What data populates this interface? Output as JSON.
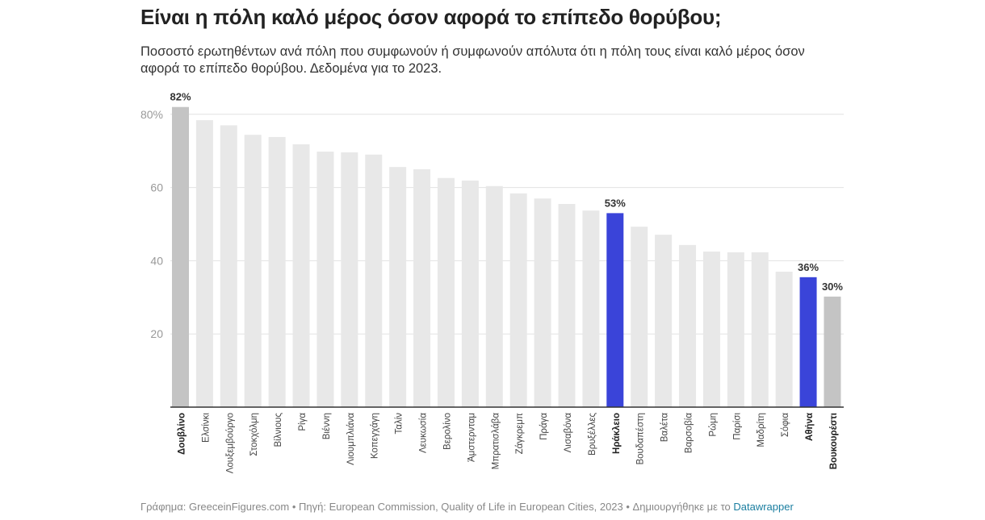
{
  "title": "Είναι η πόλη καλό μέρος όσον αφορά το επίπεδο θορύβου;",
  "subtitle": "Ποσοστό ερωτηθέντων ανά πόλη που συμφωνούν ή συμφωνούν απόλυτα ότι η πόλη τους είναι καλό μέρος όσον αφορά το επίπεδο θορύβου. Δεδομένα για το 2023.",
  "footer": {
    "text": "Γράφημα: GreeceinFigures.com • Πηγή: European Commission, Quality of Life in European Cities, 2023 • Δημιουργήθηκε με το ",
    "link": "Datawrapper"
  },
  "colors": {
    "default": "#e8e8e8",
    "grey": "#c4c4c4",
    "highlight": "#3a44d9"
  },
  "chart_data": {
    "type": "bar",
    "title": "Είναι η πόλη καλό μέρος όσον αφορά το επίπεδο θορύβου;",
    "ylim": [
      0,
      85
    ],
    "yticks": [
      20,
      40,
      60,
      80
    ],
    "ytick_labels": [
      "20",
      "40",
      "60",
      "80%"
    ],
    "grid": true,
    "categories": [
      "Δουβλίνο",
      "Ελσίνκι",
      "Λουξεμβούργο",
      "Στοκχόλμη",
      "Βίλνιους",
      "Ρίγα",
      "Βιέννη",
      "Λιουμπλιάνα",
      "Κοπεγχάγη",
      "Ταλίν",
      "Λευκωσία",
      "Βερολίνο",
      "Άμστερνταμ",
      "Μπρατισλάβα",
      "Ζάγκρεμπ",
      "Πράγα",
      "Λισαβόνα",
      "Βρυξέλλες",
      "Ηράκλειο",
      "Βουδαπέστη",
      "Βαλέτα",
      "Βαρσοβία",
      "Ρώμη",
      "Παρίσι",
      "Μαδρίτη",
      "Σόφια",
      "Αθήνα",
      "Βουκουρέστι"
    ],
    "values": [
      82,
      78.4,
      77,
      74.4,
      73.8,
      71.8,
      69.8,
      69.6,
      69,
      65.6,
      65,
      62.6,
      61.9,
      60.4,
      58.4,
      57,
      55.5,
      53.7,
      53,
      49.3,
      47.1,
      44.3,
      42.5,
      42.3,
      42.3,
      37,
      35.5,
      30.2
    ],
    "styles": [
      "grey",
      "default",
      "default",
      "default",
      "default",
      "default",
      "default",
      "default",
      "default",
      "default",
      "default",
      "default",
      "default",
      "default",
      "default",
      "default",
      "default",
      "default",
      "highlight",
      "default",
      "default",
      "default",
      "default",
      "default",
      "default",
      "default",
      "highlight",
      "grey"
    ],
    "bold": [
      0,
      18,
      26,
      27
    ],
    "data_labels": {
      "0": "82%",
      "18": "53%",
      "26": "36%",
      "27": "30%"
    }
  }
}
